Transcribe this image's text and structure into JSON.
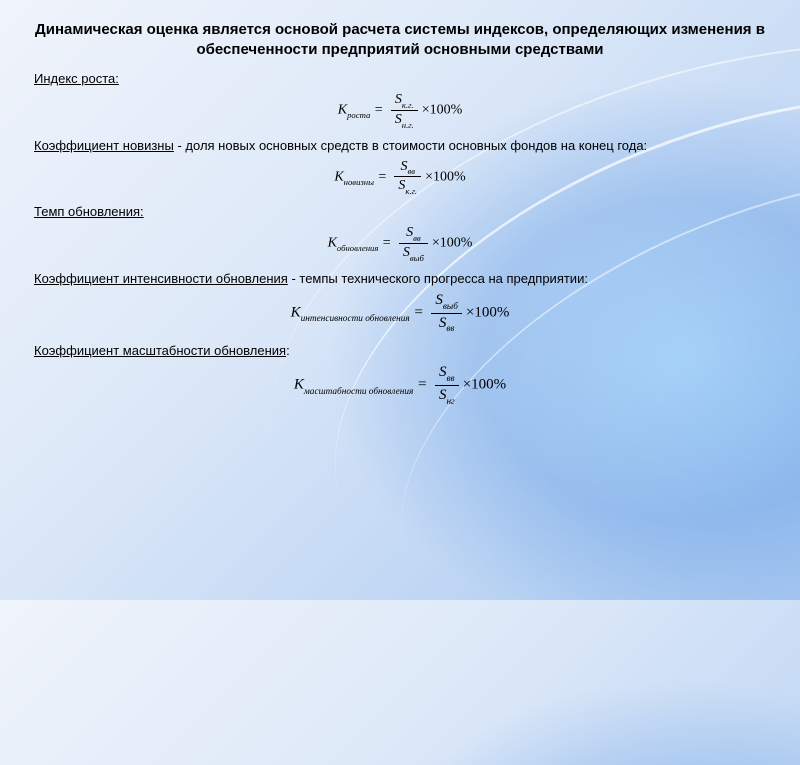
{
  "title": "Динамическая оценка является основой расчета системы индексов, определяющих изменения в обеспеченности предприятий основными средствами",
  "sections": {
    "growth": {
      "label": "Индекс роста:",
      "K_sub": "роста",
      "num_sub": "к.г.",
      "den_sub": "н.г."
    },
    "novelty": {
      "label": "Коэффициент новизны",
      "desc": "- доля новых основных средств в стоимости основных фондов на конец года:",
      "K_sub": "новизны",
      "num_sub": "вв",
      "den_sub": "к.г."
    },
    "tempo": {
      "label": "Темп обновления:",
      "K_sub": "обновления",
      "num_sub": "вв",
      "den_sub": "выб"
    },
    "intensity": {
      "label": "Коэффициент интенсивности обновления",
      "desc": "- темпы технического прогресса на предприятии:",
      "K_sub": "интенсивности обновления",
      "num_sub": "выб",
      "den_sub": "вв"
    },
    "scale": {
      "label": "Коэффициент масштабности обновления",
      "colon": ":",
      "K_sub": "масштабности обновления",
      "num_sub": "вв",
      "den_sub": "нг"
    }
  },
  "formula_tail": "×100%"
}
